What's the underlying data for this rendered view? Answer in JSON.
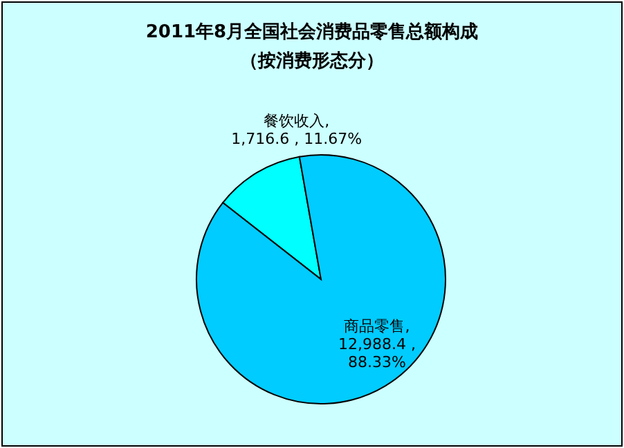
{
  "chart_data": {
    "type": "pie",
    "title": "2011年8月全国社会消费品零售总额构成",
    "subtitle": "（按消费形态分）",
    "categories": [
      "餐饮收入",
      "商品零售"
    ],
    "values": [
      1716.6,
      12988.4
    ],
    "value_labels": [
      ", 1,716.6 , 11.67%",
      ", 12,988.4 , 88.33%"
    ],
    "colors": [
      "#00ffff",
      "#00ccff"
    ]
  }
}
